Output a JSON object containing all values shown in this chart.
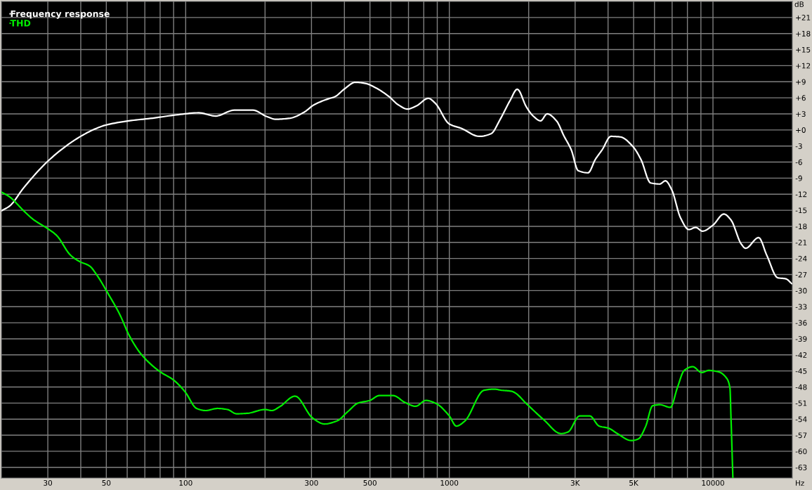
{
  "chart_data": {
    "type": "line",
    "xlabel": "Hz",
    "ylabel": "dB",
    "log": "x",
    "xlim": [
      20,
      20000
    ],
    "ylim": [
      -65,
      24
    ],
    "xticks": [
      30,
      {
        "value": 40,
        "label": null
      },
      50,
      {
        "value": 60,
        "label": null
      },
      {
        "value": 70,
        "label": null
      },
      {
        "value": 80,
        "label": null
      },
      {
        "value": 90,
        "label": null
      },
      100,
      {
        "value": 200,
        "label": null
      },
      300,
      {
        "value": 400,
        "label": null
      },
      500,
      {
        "value": 600,
        "label": null
      },
      {
        "value": 700,
        "label": null
      },
      {
        "value": 800,
        "label": null
      },
      {
        "value": 900,
        "label": null
      },
      1000,
      {
        "value": 2000,
        "label": null
      },
      {
        "value": 3000,
        "label": "3K"
      },
      {
        "value": 4000,
        "label": null
      },
      {
        "value": 5000,
        "label": "5K"
      },
      {
        "value": 6000,
        "label": null
      },
      {
        "value": 7000,
        "label": null
      },
      {
        "value": 8000,
        "label": null
      },
      {
        "value": 9000,
        "label": null
      },
      10000
    ],
    "yticks": [
      {
        "value": 21,
        "label": "+21"
      },
      {
        "value": 18,
        "label": "+18"
      },
      {
        "value": 15,
        "label": "+15"
      },
      {
        "value": 12,
        "label": "+12"
      },
      {
        "value": 9,
        "label": "+9"
      },
      {
        "value": 6,
        "label": "+6"
      },
      {
        "value": 3,
        "label": "+3"
      },
      {
        "value": 0,
        "label": "+0"
      },
      -3,
      -6,
      -9,
      -12,
      -15,
      -18,
      -21,
      -24,
      -27,
      -30,
      -33,
      -36,
      -39,
      -42,
      -45,
      -48,
      -51,
      -54,
      -57,
      -60,
      -63
    ],
    "grid": true,
    "legend": "top left",
    "series": [
      {
        "name": "Frequency response",
        "color": "#ffffff",
        "x": [
          20,
          21.5,
          24.3,
          29.9,
          36.6,
          40.6,
          44.9,
          49.7,
          60.9,
          75,
          91.8,
          112,
          130,
          153,
          180,
          203,
          220,
          249,
          281,
          307,
          347,
          368,
          399,
          440,
          480,
          520,
          588,
          640,
          693,
          751,
          832,
          884,
          1000,
          1110,
          1300,
          1440,
          1560,
          1700,
          1810,
          1960,
          2080,
          2220,
          2350,
          2550,
          2720,
          2900,
          3080,
          3360,
          3580,
          3800,
          4100,
          4450,
          4950,
          5330,
          5800,
          6280,
          6600,
          6980,
          7530,
          8100,
          8600,
          9120,
          9990,
          11000,
          11700,
          12800,
          13300,
          14900,
          16000,
          17600,
          18900,
          19900
        ],
        "values": [
          -15.1,
          -14.2,
          -10.8,
          -5.9,
          -2.4,
          -1.0,
          0.1,
          0.9,
          1.7,
          2.2,
          2.8,
          3.2,
          2.6,
          3.7,
          3.7,
          2.5,
          2.0,
          2.2,
          3.3,
          4.7,
          5.8,
          6.2,
          7.6,
          8.9,
          8.7,
          8.0,
          6.3,
          4.7,
          3.9,
          4.5,
          5.9,
          5.0,
          1.1,
          0.3,
          -1.2,
          -0.7,
          2.0,
          5.5,
          7.6,
          4.3,
          2.6,
          1.7,
          3.0,
          1.7,
          -1.1,
          -3.7,
          -7.6,
          -8.0,
          -5.5,
          -3.7,
          -1.2,
          -1.3,
          -3.0,
          -5.5,
          -9.9,
          -10.1,
          -9.5,
          -11.2,
          -16.4,
          -18.6,
          -18.2,
          -18.9,
          -17.8,
          -15.7,
          -16.8,
          -21.3,
          -22.1,
          -20.1,
          -23.4,
          -27.6,
          -27.8,
          -28.7
        ]
      },
      {
        "name": "THD",
        "color": "#00ee00",
        "x": [
          20,
          21.5,
          24.3,
          26.4,
          29.9,
          32.4,
          36.6,
          39.7,
          43.2,
          45.9,
          50.7,
          56.3,
          61.1,
          67.6,
          79.7,
          90,
          99.5,
          110,
          119,
          132,
          144,
          156,
          172,
          200,
          212,
          227,
          260,
          303,
          336,
          376,
          412,
          451,
          500,
          542,
          612,
          680,
          745,
          815,
          892,
          1000,
          1063,
          1143,
          1354,
          1482,
          1575,
          1724,
          1777,
          1960,
          2280,
          2650,
          2820,
          3120,
          3410,
          3700,
          4020,
          4340,
          4900,
          5210,
          5550,
          5900,
          6280,
          6900,
          7320,
          7780,
          8380,
          9060,
          9630,
          10550,
          11200,
          11600,
          11700,
          11900
        ],
        "values": [
          -11.6,
          -12.5,
          -15.1,
          -16.7,
          -18.4,
          -19.7,
          -23.4,
          -24.6,
          -25.4,
          -27.0,
          -30.5,
          -34.5,
          -38.4,
          -41.8,
          -45.1,
          -46.7,
          -48.9,
          -52.0,
          -52.4,
          -52.0,
          -52.2,
          -53.0,
          -52.9,
          -52.2,
          -52.4,
          -51.7,
          -49.7,
          -53.8,
          -54.9,
          -54.3,
          -52.6,
          -51.0,
          -50.5,
          -49.6,
          -49.6,
          -50.9,
          -51.6,
          -50.5,
          -51.1,
          -53.4,
          -55.3,
          -54.4,
          -48.6,
          -48.4,
          -48.6,
          -48.8,
          -49.1,
          -51.1,
          -54.1,
          -56.7,
          -56.4,
          -53.4,
          -53.4,
          -55.3,
          -55.7,
          -56.7,
          -58.0,
          -57.7,
          -55.4,
          -51.5,
          -51.3,
          -51.8,
          -48.2,
          -44.9,
          -44.2,
          -45.3,
          -44.9,
          -45.2,
          -46.2,
          -48.2,
          -53.4,
          -65
        ]
      }
    ]
  }
}
